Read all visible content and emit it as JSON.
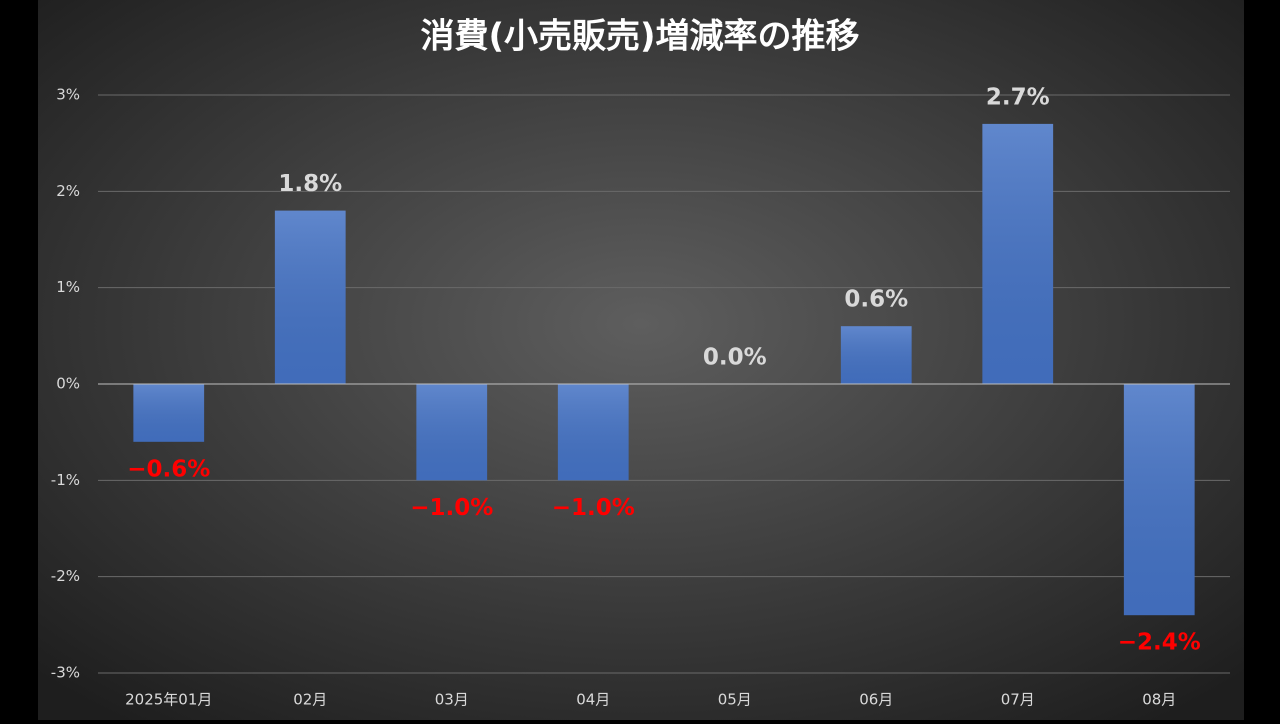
{
  "chart_data": {
    "type": "bar",
    "title": "消費(小売販売)増減率の推移",
    "categories": [
      "2025年01月",
      "02月",
      "03月",
      "04月",
      "05月",
      "06月",
      "07月",
      "08月"
    ],
    "values": [
      -0.6,
      1.8,
      -1.0,
      -1.0,
      0.0,
      0.6,
      2.7,
      -2.4
    ],
    "value_labels": [
      "−0.6%",
      "1.8%",
      "−1.0%",
      "−1.0%",
      "0.0%",
      "0.6%",
      "2.7%",
      "−2.4%"
    ],
    "color": "#4472c4",
    "positive_label_color": "#d9d9d9",
    "negative_label_color": "#ff0000",
    "ylim": [
      -3,
      3
    ],
    "yticks": [
      {
        "value": -3,
        "label": "-3%"
      },
      {
        "value": -2,
        "label": "-2%"
      },
      {
        "value": -1,
        "label": "-1%"
      },
      {
        "value": 0,
        "label": "0%"
      },
      {
        "value": 1,
        "label": "1%"
      },
      {
        "value": 2,
        "label": "2%"
      },
      {
        "value": 3,
        "label": "3%"
      }
    ],
    "grid": true
  }
}
